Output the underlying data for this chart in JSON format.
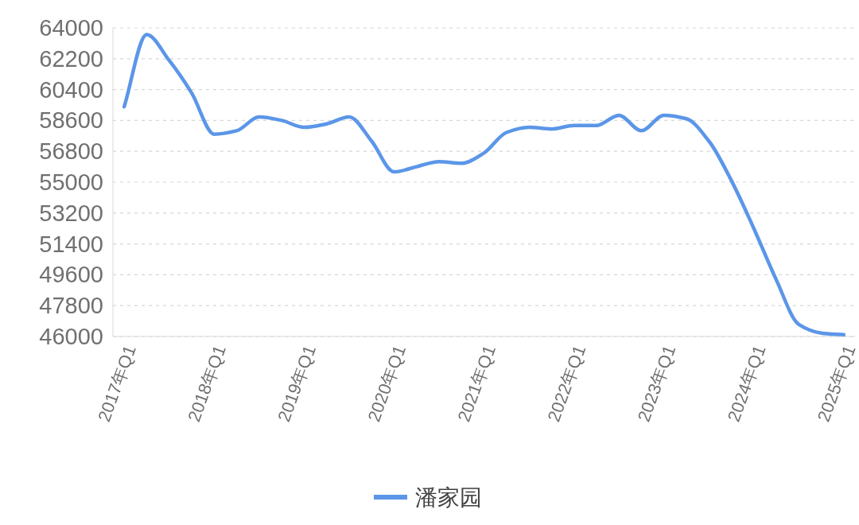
{
  "chart_data": {
    "type": "line",
    "categories": [
      "2017年Q1",
      null,
      null,
      null,
      "2018年Q1",
      null,
      null,
      null,
      "2019年Q1",
      null,
      null,
      null,
      "2020年Q1",
      null,
      null,
      null,
      "2021年Q1",
      null,
      null,
      null,
      "2022年Q1",
      null,
      null,
      null,
      "2023年Q1",
      null,
      null,
      null,
      "2024年Q1",
      null,
      null,
      null,
      "2025年Q1"
    ],
    "series": [
      {
        "name": "潘家园",
        "color": "#5b96e8",
        "values": [
          59400,
          63600,
          62100,
          60200,
          57800,
          58000,
          58800,
          58600,
          58200,
          58400,
          58800,
          57400,
          55600,
          55900,
          56200,
          56100,
          56700,
          57900,
          58200,
          58100,
          58300,
          58300,
          58900,
          58000,
          58900,
          58700,
          57400,
          55100,
          52300,
          49300,
          46700,
          46200,
          46100
        ]
      }
    ],
    "ylim": [
      46000,
      64000
    ],
    "yticks": [
      46000,
      47800,
      49600,
      51400,
      53200,
      55000,
      56800,
      58600,
      60400,
      62200,
      64000
    ],
    "grid": "y",
    "legend": "bottom",
    "marker": "none",
    "line_style": "solid"
  }
}
